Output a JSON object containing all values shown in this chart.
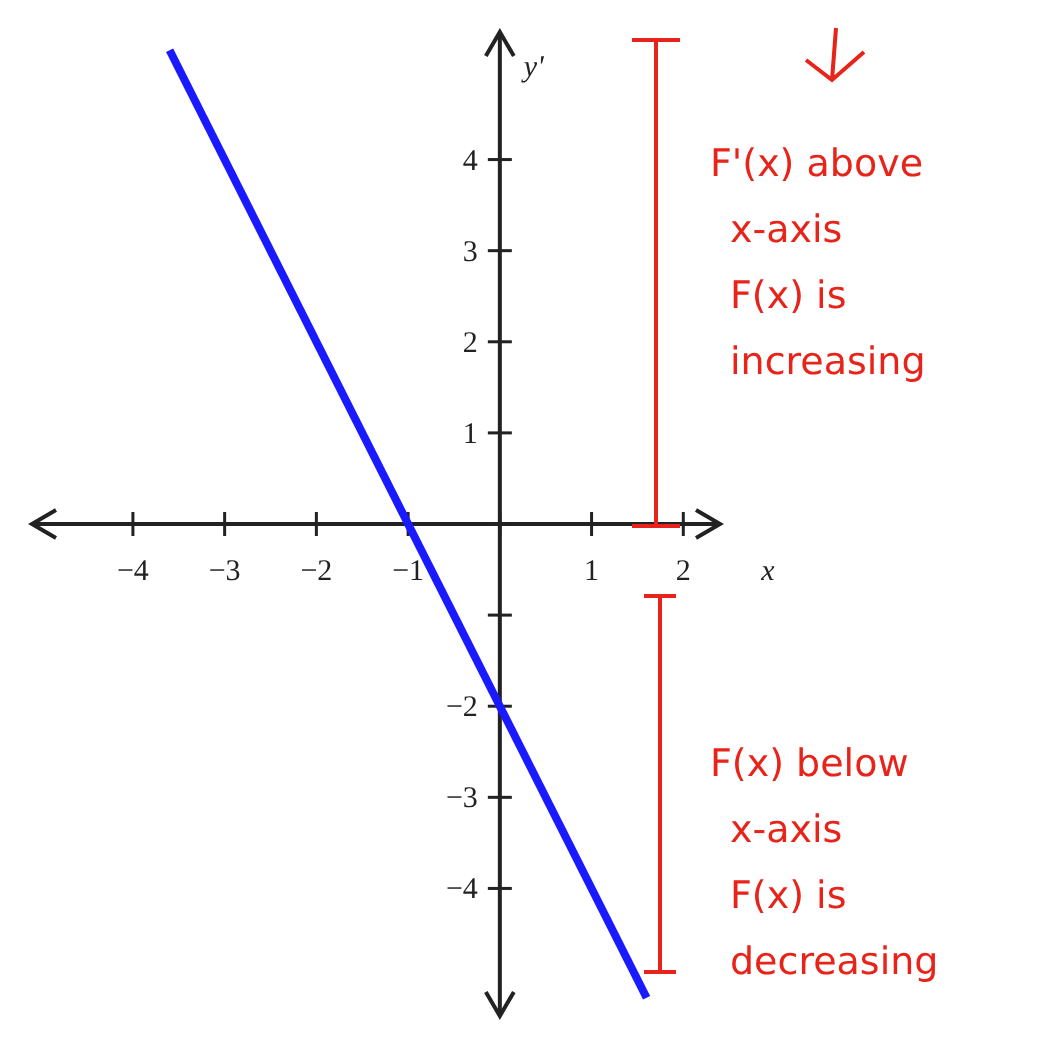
{
  "chart_data": {
    "type": "line",
    "xlabel": "x",
    "ylabel": "y'",
    "xlim": [
      -5.1,
      2.4
    ],
    "ylim": [
      -5.4,
      5.4
    ],
    "xticks": [
      -4,
      -3,
      -2,
      -1,
      {
        "value": 0,
        "label": null
      },
      1,
      2
    ],
    "yticks": [
      -4,
      -3,
      -2,
      {
        "value": -1,
        "label": null
      },
      {
        "value": 0,
        "label": null
      },
      1,
      2,
      3,
      4
    ],
    "series": [
      {
        "color": "#1a1aff",
        "x": [
          -3.6,
          1.6
        ],
        "values": [
          5.2,
          -5.2
        ]
      }
    ],
    "marker": "none",
    "line_style": "solid",
    "annotations": [
      "F'(x) above\nx-axis\nF(x) is\nincreasing",
      "F(x) below\nx-axis\nF(x) is\ndecreasing"
    ]
  }
}
